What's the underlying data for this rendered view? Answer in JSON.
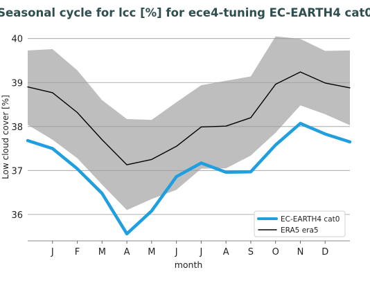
{
  "chart_data": {
    "type": "line",
    "title": "Seasonal cycle for lcc [%] for ece4-tuning EC-EARTH4 cat0",
    "xlabel": "month",
    "ylabel": "Low cloud cover [%]",
    "categories": [
      "J",
      "F",
      "M",
      "A",
      "M",
      "J",
      "J",
      "A",
      "S",
      "O",
      "N",
      "D"
    ],
    "xlim": [
      0.0,
      13.0
    ],
    "ylim": [
      35.4,
      40.2
    ],
    "yticks": [
      36,
      37,
      38,
      39,
      40
    ],
    "grid": "horizontal",
    "legend": "bottom-right",
    "series": [
      {
        "name": "EC-EARTH4 cat0",
        "color": "#1f9ee0",
        "values": [
          37.5,
          37.04,
          36.48,
          35.56,
          36.08,
          36.86,
          37.17,
          36.96,
          36.97,
          37.58,
          38.07,
          37.83
        ],
        "ends": [
          37.68,
          37.65
        ]
      },
      {
        "name": "ERA5 era5",
        "color": "#000000",
        "values": [
          38.77,
          38.32,
          37.7,
          37.13,
          37.25,
          37.55,
          37.99,
          38.01,
          38.2,
          38.96,
          39.24,
          38.99
        ],
        "ends": [
          38.9,
          38.88
        ],
        "band_upper": [
          39.76,
          39.28,
          38.6,
          38.17,
          38.15,
          38.55,
          38.94,
          39.04,
          39.14,
          40.05,
          39.99,
          39.72
        ],
        "band_upper_ends": [
          39.73,
          39.73
        ],
        "band_lower": [
          37.7,
          37.28,
          36.68,
          36.1,
          36.35,
          36.56,
          37.04,
          37.05,
          37.34,
          37.86,
          38.48,
          38.28
        ],
        "band_lower_ends": [
          38.04,
          38.03
        ],
        "band_color": "#bebebe"
      }
    ]
  }
}
